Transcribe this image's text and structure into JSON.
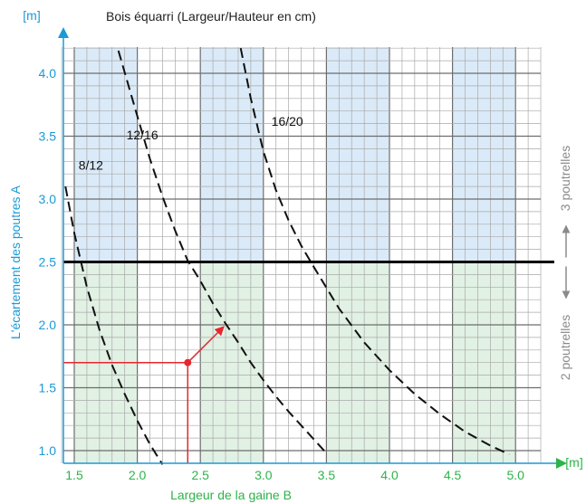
{
  "chart_data": {
    "type": "line",
    "title": "Bois équarri (Largeur/Hauteur en cm)",
    "xlabel": "Largeur de la gaine B",
    "ylabel": "L'écartement des poutres A",
    "x_unit": "[m]",
    "y_unit": "[m]",
    "xlim": [
      1.4,
      5.2
    ],
    "ylim": [
      0.9,
      4.25
    ],
    "x_ticks": [
      "1.5",
      "2.0",
      "2.5",
      "3.0",
      "3.5",
      "4.0",
      "4.5",
      "5.0"
    ],
    "y_ticks": [
      "1.0",
      "1.5",
      "2.0",
      "2.5",
      "3.0",
      "3.5",
      "4.0"
    ],
    "grid": true,
    "series": [
      {
        "name": "8/12",
        "label_at": [
          1.62,
          3.27
        ],
        "x": [
          1.43,
          1.5,
          1.6,
          1.7,
          1.8,
          1.9,
          2.0,
          2.1,
          2.2
        ],
        "y": [
          3.1,
          2.73,
          2.3,
          1.96,
          1.68,
          1.45,
          1.24,
          1.05,
          0.89
        ]
      },
      {
        "name": "12/16",
        "label_at": [
          2.0,
          3.51
        ],
        "x": [
          1.85,
          2.0,
          2.1,
          2.2,
          2.3,
          2.4,
          2.5,
          2.6,
          2.7,
          2.8,
          2.9,
          3.0,
          3.1,
          3.2,
          3.3,
          3.4,
          3.5
        ],
        "y": [
          4.18,
          3.66,
          3.32,
          3.02,
          2.75,
          2.51,
          2.35,
          2.17,
          2.01,
          1.86,
          1.7,
          1.56,
          1.43,
          1.31,
          1.2,
          1.09,
          0.98
        ]
      },
      {
        "name": "16/20",
        "label_at": [
          3.15,
          3.62
        ],
        "x": [
          2.82,
          2.9,
          3.0,
          3.1,
          3.2,
          3.3,
          3.4,
          3.6,
          3.8,
          4.0,
          4.2,
          4.4,
          4.6,
          4.8,
          4.95
        ],
        "y": [
          4.2,
          3.8,
          3.38,
          3.07,
          2.83,
          2.63,
          2.46,
          2.13,
          1.86,
          1.64,
          1.45,
          1.29,
          1.15,
          1.04,
          0.97
        ]
      }
    ],
    "threshold": {
      "y": 2.5
    },
    "side_labels": {
      "above": "3 poutrelles",
      "below": "2 poutrelles"
    },
    "example": {
      "x": 2.4,
      "y": 1.7,
      "arrow_to": [
        2.7,
        2.0
      ]
    }
  },
  "colors": {
    "axis": "#1a9ad6",
    "xlabel": "#2db34a",
    "blue_band": "#dbeaf8",
    "green_band": "#e1f1e4",
    "grid_minor": "#a9a9a9",
    "grid_major": "#6d6d6d",
    "highlight": "#e8262d",
    "side_text": "#8a8a8a"
  }
}
